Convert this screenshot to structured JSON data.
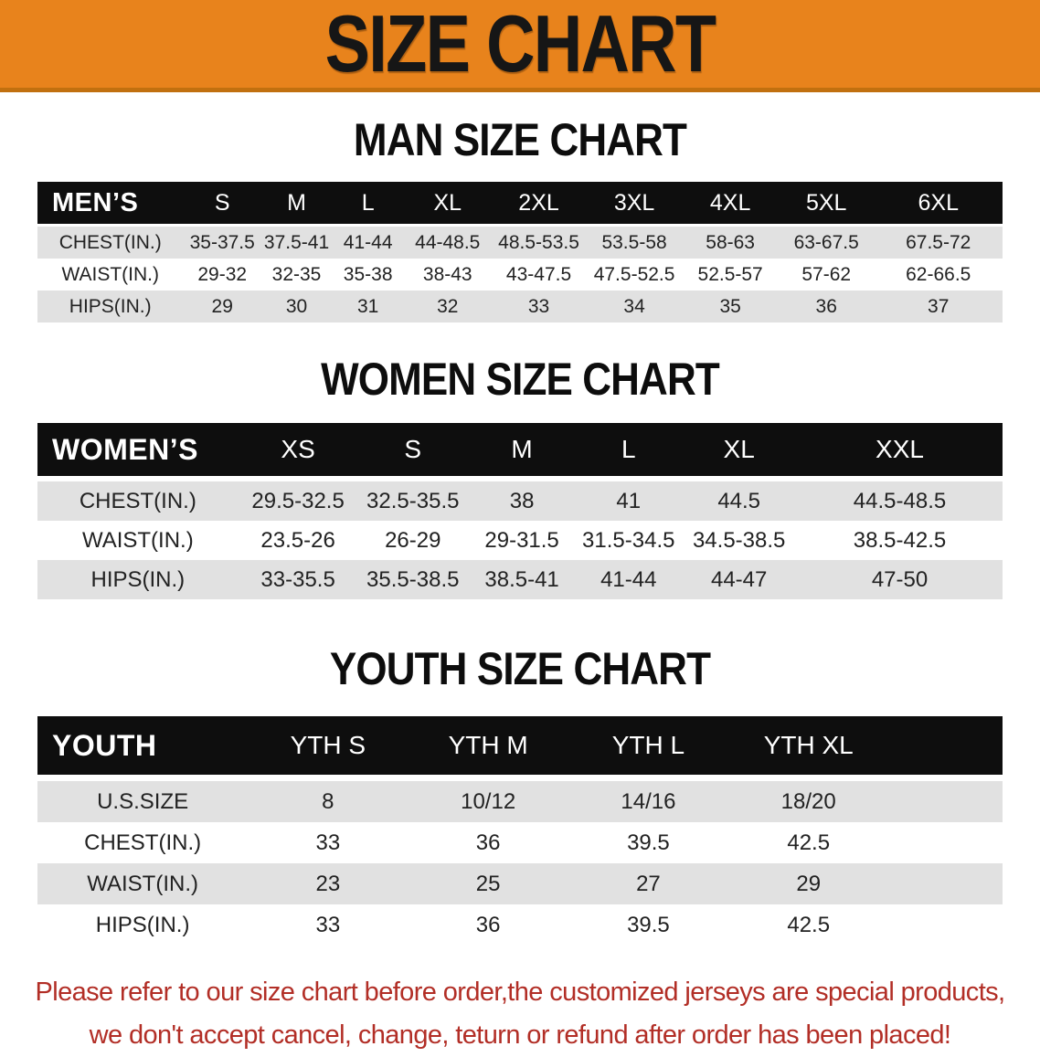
{
  "banner": {
    "title": "SIZE CHART",
    "bg_color": "#e8831c",
    "text_color": "#161616"
  },
  "chart_data": [
    {
      "type": "table",
      "title": "MAN SIZE CHART",
      "header": [
        "MEN’S",
        "S",
        "M",
        "L",
        "XL",
        "2XL",
        "3XL",
        "4XL",
        "5XL",
        "6XL"
      ],
      "rows": [
        {
          "label": "CHEST(IN.)",
          "values": [
            "35-37.5",
            "37.5-41",
            "41-44",
            "44-48.5",
            "48.5-53.5",
            "53.5-58",
            "58-63",
            "63-67.5",
            "67.5-72"
          ]
        },
        {
          "label": "WAIST(IN.)",
          "values": [
            "29-32",
            "32-35",
            "35-38",
            "38-43",
            "43-47.5",
            "47.5-52.5",
            "52.5-57",
            "57-62",
            "62-66.5"
          ]
        },
        {
          "label": "HIPS(IN.)",
          "values": [
            "29",
            "30",
            "31",
            "32",
            "33",
            "34",
            "35",
            "36",
            "37"
          ]
        }
      ]
    },
    {
      "type": "table",
      "title": "WOMEN SIZE CHART",
      "header": [
        "WOMEN’S",
        "XS",
        "S",
        "M",
        "L",
        "XL",
        "XXL"
      ],
      "rows": [
        {
          "label": "CHEST(IN.)",
          "values": [
            "29.5-32.5",
            "32.5-35.5",
            "38",
            "41",
            "44.5",
            "44.5-48.5"
          ]
        },
        {
          "label": "WAIST(IN.)",
          "values": [
            "23.5-26",
            "26-29",
            "29-31.5",
            "31.5-34.5",
            "34.5-38.5",
            "38.5-42.5"
          ]
        },
        {
          "label": "HIPS(IN.)",
          "values": [
            "33-35.5",
            "35.5-38.5",
            "38.5-41",
            "41-44",
            "44-47",
            "47-50"
          ]
        }
      ]
    },
    {
      "type": "table",
      "title": "YOUTH SIZE CHART",
      "header": [
        "YOUTH",
        "YTH S",
        "YTH M",
        "YTH L",
        "YTH XL"
      ],
      "rows": [
        {
          "label": "U.S.SIZE",
          "values": [
            "8",
            "10/12",
            "14/16",
            "18/20"
          ]
        },
        {
          "label": "CHEST(IN.)",
          "values": [
            "33",
            "36",
            "39.5",
            "42.5"
          ]
        },
        {
          "label": "WAIST(IN.)",
          "values": [
            "23",
            "25",
            "27",
            "29"
          ]
        },
        {
          "label": "HIPS(IN.)",
          "values": [
            "33",
            "36",
            "39.5",
            "42.5"
          ]
        }
      ]
    }
  ],
  "footer": {
    "line1": "Please refer to our size chart before order,the customized jerseys are special products,",
    "line2": "we don't accept cancel, change, teturn or refund after order has been placed!",
    "text_color": "#b22e26"
  }
}
